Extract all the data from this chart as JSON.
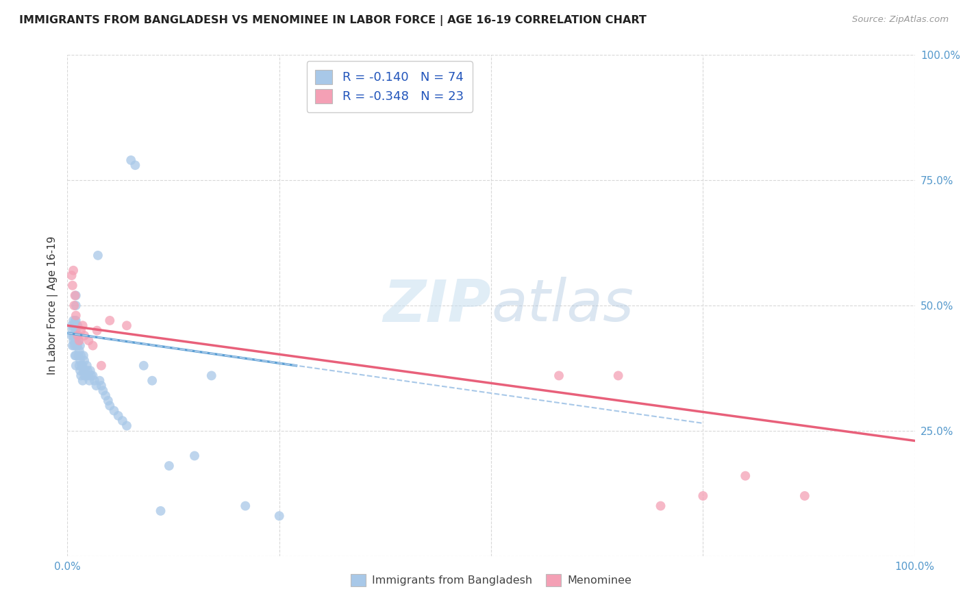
{
  "title": "IMMIGRANTS FROM BANGLADESH VS MENOMINEE IN LABOR FORCE | AGE 16-19 CORRELATION CHART",
  "source": "Source: ZipAtlas.com",
  "ylabel": "In Labor Force | Age 16-19",
  "xlim": [
    0.0,
    1.0
  ],
  "ylim": [
    0.0,
    1.0
  ],
  "x_ticks": [
    0.0,
    0.25,
    0.5,
    0.75,
    1.0
  ],
  "y_ticks": [
    0.0,
    0.25,
    0.5,
    0.75,
    1.0
  ],
  "legend_blue_r": "R = -0.140",
  "legend_blue_n": "N = 74",
  "legend_pink_r": "R = -0.348",
  "legend_pink_n": "N = 23",
  "blue_color": "#a8c8e8",
  "pink_color": "#f4a0b5",
  "blue_line_color": "#5a9fd4",
  "pink_line_color": "#e8607a",
  "dashed_line_color": "#a8c8e8",
  "blue_scatter_x": [
    0.005,
    0.005,
    0.006,
    0.006,
    0.007,
    0.007,
    0.007,
    0.008,
    0.008,
    0.008,
    0.009,
    0.009,
    0.009,
    0.009,
    0.01,
    0.01,
    0.01,
    0.01,
    0.01,
    0.01,
    0.01,
    0.01,
    0.01,
    0.012,
    0.012,
    0.012,
    0.013,
    0.013,
    0.014,
    0.014,
    0.015,
    0.015,
    0.015,
    0.016,
    0.016,
    0.017,
    0.018,
    0.018,
    0.019,
    0.019,
    0.02,
    0.02,
    0.021,
    0.022,
    0.023,
    0.024,
    0.025,
    0.026,
    0.027,
    0.028,
    0.03,
    0.032,
    0.034,
    0.036,
    0.038,
    0.04,
    0.042,
    0.045,
    0.048,
    0.05,
    0.055,
    0.06,
    0.065,
    0.07,
    0.075,
    0.08,
    0.09,
    0.1,
    0.11,
    0.12,
    0.15,
    0.17,
    0.21,
    0.25
  ],
  "blue_scatter_y": [
    0.44,
    0.46,
    0.42,
    0.45,
    0.43,
    0.44,
    0.47,
    0.42,
    0.44,
    0.46,
    0.4,
    0.43,
    0.44,
    0.47,
    0.38,
    0.4,
    0.42,
    0.43,
    0.45,
    0.46,
    0.47,
    0.5,
    0.52,
    0.42,
    0.44,
    0.46,
    0.4,
    0.43,
    0.38,
    0.41,
    0.37,
    0.39,
    0.42,
    0.36,
    0.4,
    0.38,
    0.35,
    0.38,
    0.37,
    0.4,
    0.36,
    0.39,
    0.37,
    0.36,
    0.38,
    0.37,
    0.36,
    0.35,
    0.37,
    0.36,
    0.36,
    0.35,
    0.34,
    0.6,
    0.35,
    0.34,
    0.33,
    0.32,
    0.31,
    0.3,
    0.29,
    0.28,
    0.27,
    0.26,
    0.79,
    0.78,
    0.38,
    0.35,
    0.09,
    0.18,
    0.2,
    0.36,
    0.1,
    0.08
  ],
  "pink_scatter_x": [
    0.005,
    0.006,
    0.007,
    0.008,
    0.009,
    0.01,
    0.012,
    0.014,
    0.016,
    0.018,
    0.02,
    0.025,
    0.03,
    0.035,
    0.04,
    0.05,
    0.07,
    0.58,
    0.65,
    0.7,
    0.75,
    0.8,
    0.87
  ],
  "pink_scatter_y": [
    0.56,
    0.54,
    0.57,
    0.5,
    0.52,
    0.48,
    0.44,
    0.43,
    0.45,
    0.46,
    0.44,
    0.43,
    0.42,
    0.45,
    0.38,
    0.47,
    0.46,
    0.36,
    0.36,
    0.1,
    0.12,
    0.16,
    0.12
  ],
  "blue_line_x": [
    0.0,
    0.27
  ],
  "blue_line_y": [
    0.445,
    0.38
  ],
  "pink_line_x": [
    0.0,
    1.0
  ],
  "pink_line_y": [
    0.46,
    0.23
  ],
  "dashed_line_x": [
    0.0,
    0.75
  ],
  "dashed_line_y": [
    0.445,
    0.265
  ],
  "watermark_zip": "ZIP",
  "watermark_atlas": "atlas",
  "background_color": "#ffffff",
  "grid_color": "#d8d8d8"
}
